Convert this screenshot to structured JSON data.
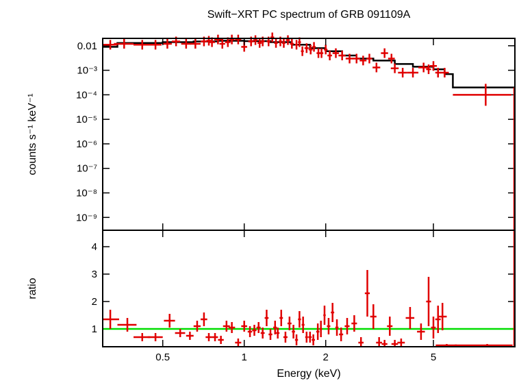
{
  "chart_data": {
    "type": "scatter",
    "title": "Swift−XRT PC spectrum of GRB 091109A",
    "xlabel": "Energy (keV)",
    "x_scale": "log",
    "xlim": [
      0.3,
      10
    ],
    "x_ticks": [
      {
        "value": 0.5,
        "label": "0.5"
      },
      {
        "value": 1,
        "label": "1"
      },
      {
        "value": 2,
        "label": "2"
      },
      {
        "value": 5,
        "label": "5"
      }
    ],
    "grid": false,
    "colors": {
      "data": "#e00000",
      "model": "#000000",
      "unity": "#00dd00"
    },
    "panels": [
      {
        "name": "spectrum",
        "ylabel": "counts s⁻¹ keV⁻¹",
        "y_scale": "log",
        "ylim": [
          3e-10,
          0.02
        ],
        "y_ticks": [
          {
            "value": 0.01,
            "label": "0.01"
          },
          {
            "value": 0.001,
            "label": "10⁻³"
          },
          {
            "value": 0.0001,
            "label": "10⁻⁴"
          },
          {
            "value": 1e-05,
            "label": "10⁻⁵"
          },
          {
            "value": 1e-06,
            "label": "10⁻⁶"
          },
          {
            "value": 1e-07,
            "label": "10⁻⁷"
          },
          {
            "value": 1e-08,
            "label": "10⁻⁸"
          },
          {
            "value": 1e-09,
            "label": "10⁻⁹"
          }
        ],
        "data": {
          "x": [
            0.32,
            0.36,
            0.42,
            0.47,
            0.52,
            0.56,
            0.61,
            0.66,
            0.71,
            0.74,
            0.76,
            0.8,
            0.83,
            0.87,
            0.9,
            0.95,
            1.0,
            1.06,
            1.1,
            1.14,
            1.17,
            1.23,
            1.27,
            1.31,
            1.36,
            1.4,
            1.45,
            1.5,
            1.56,
            1.6,
            1.64,
            1.7,
            1.76,
            1.81,
            1.88,
            1.93,
            2.0,
            2.07,
            2.18,
            2.3,
            2.45,
            2.6,
            2.75,
            2.9,
            3.08,
            3.3,
            3.5,
            3.6,
            3.85,
            4.2,
            4.6,
            4.8,
            5.0,
            5.2,
            5.5
          ],
          "y": [
            0.011,
            0.012,
            0.011,
            0.011,
            0.012,
            0.015,
            0.012,
            0.012,
            0.015,
            0.016,
            0.014,
            0.018,
            0.012,
            0.014,
            0.018,
            0.018,
            0.009,
            0.015,
            0.017,
            0.013,
            0.015,
            0.015,
            0.022,
            0.013,
            0.015,
            0.013,
            0.017,
            0.012,
            0.011,
            0.014,
            0.006,
            0.008,
            0.007,
            0.009,
            0.005,
            0.005,
            0.007,
            0.004,
            0.005,
            0.004,
            0.003,
            0.003,
            0.0025,
            0.003,
            0.0013,
            0.005,
            0.003,
            0.0012,
            0.0008,
            0.0008,
            0.0013,
            0.0011,
            0.0015,
            0.0008,
            0.0008
          ],
          "x_err": [
            0.02,
            0.03,
            0.03,
            0.025,
            0.02,
            0.02,
            0.025,
            0.03,
            0.02,
            0.015,
            0.02,
            0.025,
            0.02,
            0.02,
            0.02,
            0.025,
            0.025,
            0.025,
            0.02,
            0.02,
            0.02,
            0.02,
            0.02,
            0.02,
            0.02,
            0.02,
            0.025,
            0.025,
            0.02,
            0.02,
            0.02,
            0.03,
            0.03,
            0.025,
            0.03,
            0.03,
            0.03,
            0.04,
            0.06,
            0.07,
            0.08,
            0.08,
            0.08,
            0.07,
            0.1,
            0.1,
            0.1,
            0.12,
            0.15,
            0.2,
            0.2,
            0.1,
            0.15,
            0.12,
            0.2
          ]
        },
        "model_steps": [
          {
            "x0": 0.3,
            "x1": 0.34,
            "y": 0.009
          },
          {
            "x0": 0.34,
            "x1": 0.5,
            "y": 0.013
          },
          {
            "x0": 0.5,
            "x1": 0.65,
            "y": 0.014
          },
          {
            "x0": 0.65,
            "x1": 0.8,
            "y": 0.015
          },
          {
            "x0": 0.8,
            "x1": 1.0,
            "y": 0.016
          },
          {
            "x0": 1.0,
            "x1": 1.25,
            "y": 0.0155
          },
          {
            "x0": 1.25,
            "x1": 1.5,
            "y": 0.014
          },
          {
            "x0": 1.5,
            "x1": 1.75,
            "y": 0.011
          },
          {
            "x0": 1.75,
            "x1": 2.0,
            "y": 0.008
          },
          {
            "x0": 2.0,
            "x1": 2.3,
            "y": 0.006
          },
          {
            "x0": 2.3,
            "x1": 2.6,
            "y": 0.004
          },
          {
            "x0": 2.6,
            "x1": 3.0,
            "y": 0.003
          },
          {
            "x0": 3.0,
            "x1": 3.6,
            "y": 0.0025
          },
          {
            "x0": 3.6,
            "x1": 4.2,
            "y": 0.0018
          },
          {
            "x0": 4.2,
            "x1": 5.0,
            "y": 0.0014
          },
          {
            "x0": 5.0,
            "x1": 5.5,
            "y": 0.0011
          },
          {
            "x0": 5.5,
            "x1": 5.9,
            "y": 0.0007
          },
          {
            "x0": 5.9,
            "x1": 10.0,
            "y": 0.0002
          }
        ],
        "last_bin": {
          "x": 7.8,
          "y": 0.0001,
          "x_err": 1.9
        }
      },
      {
        "name": "ratio",
        "ylabel": "ratio",
        "y_scale": "linear",
        "ylim": [
          0.35,
          4.6
        ],
        "y_ticks": [
          {
            "value": 1,
            "label": "1"
          },
          {
            "value": 2,
            "label": "2"
          },
          {
            "value": 3,
            "label": "3"
          },
          {
            "value": 4,
            "label": "4"
          }
        ],
        "reference_line": 1,
        "data": {
          "x": [
            0.32,
            0.37,
            0.42,
            0.47,
            0.53,
            0.58,
            0.63,
            0.67,
            0.71,
            0.74,
            0.78,
            0.82,
            0.86,
            0.9,
            0.95,
            1.0,
            1.05,
            1.09,
            1.13,
            1.17,
            1.21,
            1.25,
            1.3,
            1.33,
            1.37,
            1.42,
            1.47,
            1.52,
            1.56,
            1.6,
            1.65,
            1.7,
            1.75,
            1.8,
            1.87,
            1.92,
            1.98,
            2.05,
            2.12,
            2.2,
            2.28,
            2.4,
            2.55,
            2.7,
            2.85,
            3.0,
            3.15,
            3.3,
            3.45,
            3.6,
            3.8,
            4.1,
            4.5,
            4.8,
            5.0,
            5.2,
            5.4,
            5.6,
            7.9
          ],
          "y": [
            1.35,
            1.15,
            0.7,
            0.7,
            1.3,
            0.85,
            0.75,
            1.1,
            1.35,
            0.7,
            0.7,
            0.6,
            1.1,
            1.05,
            0.5,
            1.1,
            0.9,
            0.95,
            1.05,
            0.85,
            1.4,
            0.8,
            1.05,
            0.85,
            1.4,
            0.7,
            1.2,
            0.9,
            0.6,
            1.35,
            1.15,
            0.7,
            0.7,
            0.6,
            0.9,
            1.0,
            1.5,
            1.1,
            1.6,
            1.05,
            0.8,
            1.1,
            1.2,
            0.5,
            2.3,
            1.45,
            0.5,
            0.45,
            1.1,
            0.45,
            0.5,
            1.4,
            0.9,
            2.0,
            1.05,
            1.35,
            1.45,
            0.4,
            0.4
          ],
          "x_err": [
            0.025,
            0.03,
            0.03,
            0.03,
            0.025,
            0.025,
            0.02,
            0.02,
            0.02,
            0.02,
            0.02,
            0.02,
            0.025,
            0.025,
            0.025,
            0.025,
            0.02,
            0.02,
            0.02,
            0.02,
            0.02,
            0.02,
            0.02,
            0.02,
            0.02,
            0.025,
            0.025,
            0.02,
            0.02,
            0.02,
            0.02,
            0.02,
            0.025,
            0.025,
            0.025,
            0.02,
            0.02,
            0.03,
            0.03,
            0.03,
            0.04,
            0.05,
            0.06,
            0.06,
            0.06,
            0.08,
            0.08,
            0.08,
            0.08,
            0.1,
            0.12,
            0.15,
            0.15,
            0.1,
            0.1,
            0.12,
            0.2,
            0.5,
            1.9
          ],
          "y_err": [
            0.35,
            0.25,
            0.15,
            0.15,
            0.25,
            0.15,
            0.15,
            0.2,
            0.25,
            0.15,
            0.15,
            0.15,
            0.2,
            0.2,
            0.15,
            0.2,
            0.2,
            0.2,
            0.2,
            0.2,
            0.3,
            0.2,
            0.25,
            0.2,
            0.3,
            0.2,
            0.25,
            0.25,
            0.2,
            0.3,
            0.3,
            0.2,
            0.2,
            0.2,
            0.3,
            0.3,
            0.35,
            0.3,
            0.35,
            0.3,
            0.25,
            0.3,
            0.3,
            0.2,
            0.85,
            0.45,
            0.2,
            0.15,
            0.35,
            0.15,
            0.15,
            0.4,
            0.3,
            0.9,
            0.4,
            0.5,
            0.5,
            0.05,
            0.05
          ]
        }
      }
    ]
  }
}
